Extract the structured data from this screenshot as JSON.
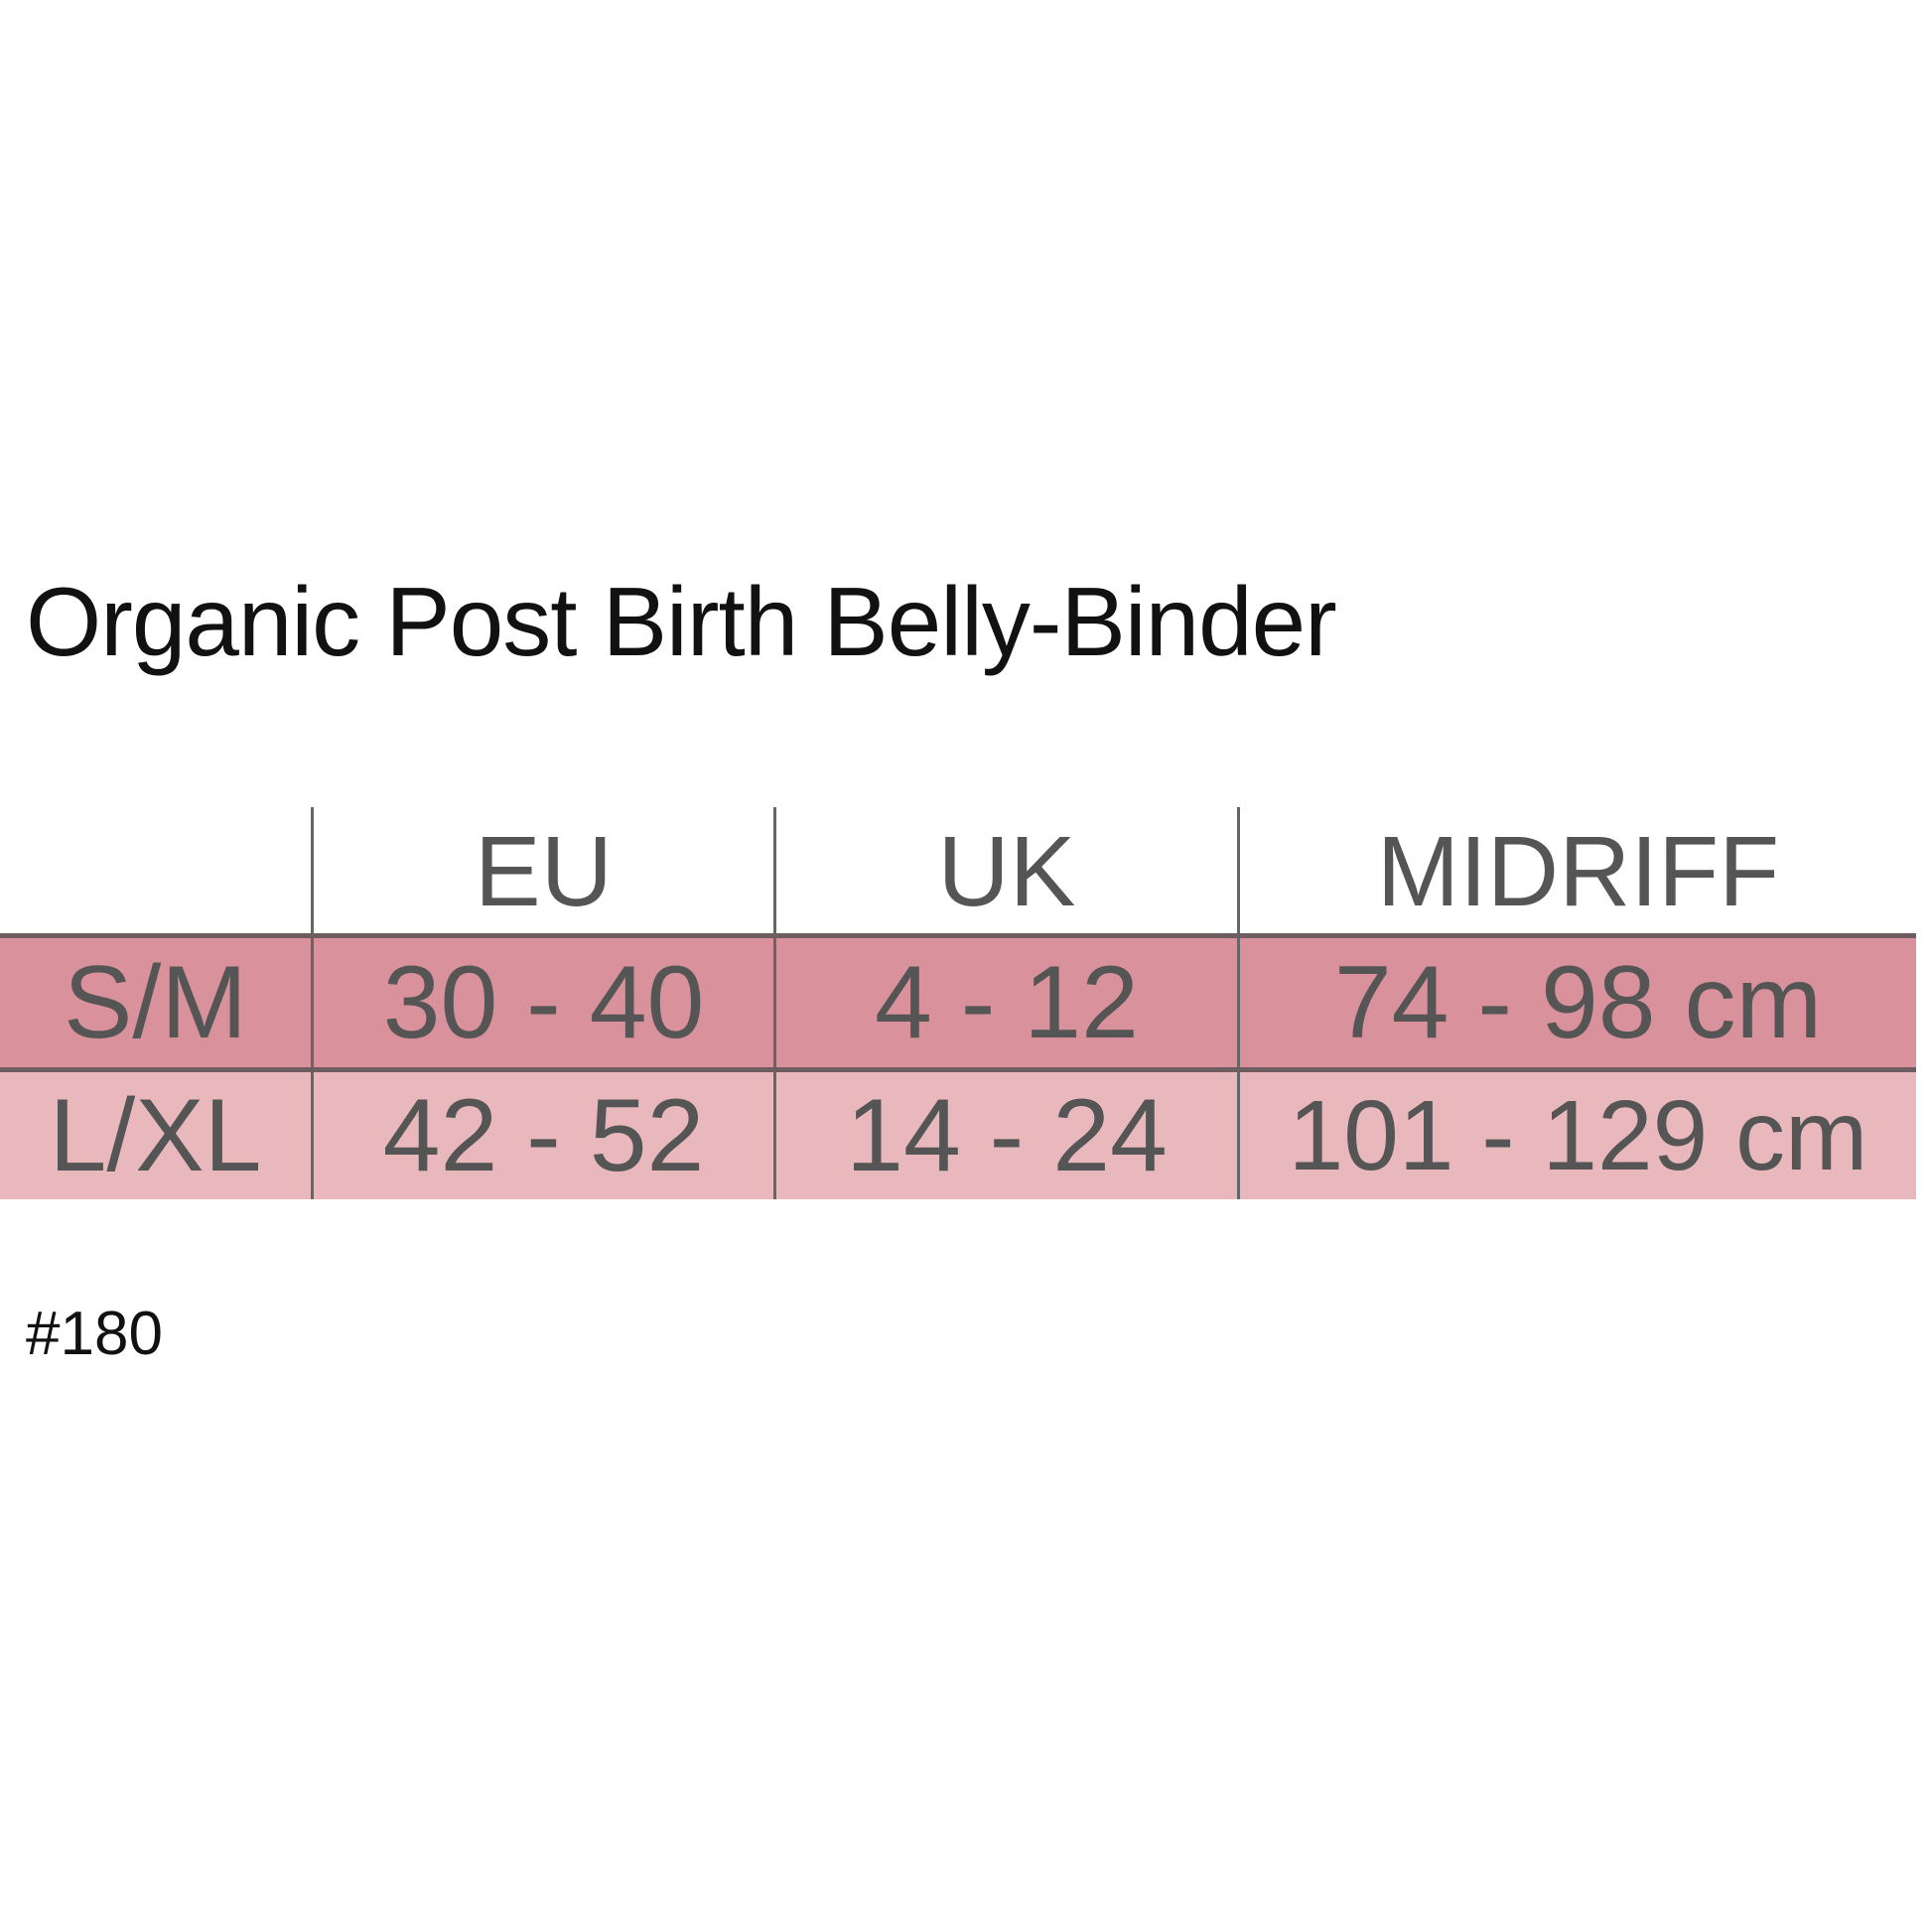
{
  "title": "Organic Post Birth Belly-Binder",
  "table": {
    "headers": [
      "",
      "EU",
      "UK",
      "MIDRIFF"
    ],
    "rows": [
      [
        "S/M",
        "30 - 40",
        "4 - 12",
        "74 - 98 cm"
      ],
      [
        "L/XL",
        "42 - 52",
        "14 - 24",
        "101 - 129 cm"
      ]
    ],
    "row_colors": [
      "#d9929b",
      "#e9b8bc"
    ]
  },
  "product_code": "#180"
}
